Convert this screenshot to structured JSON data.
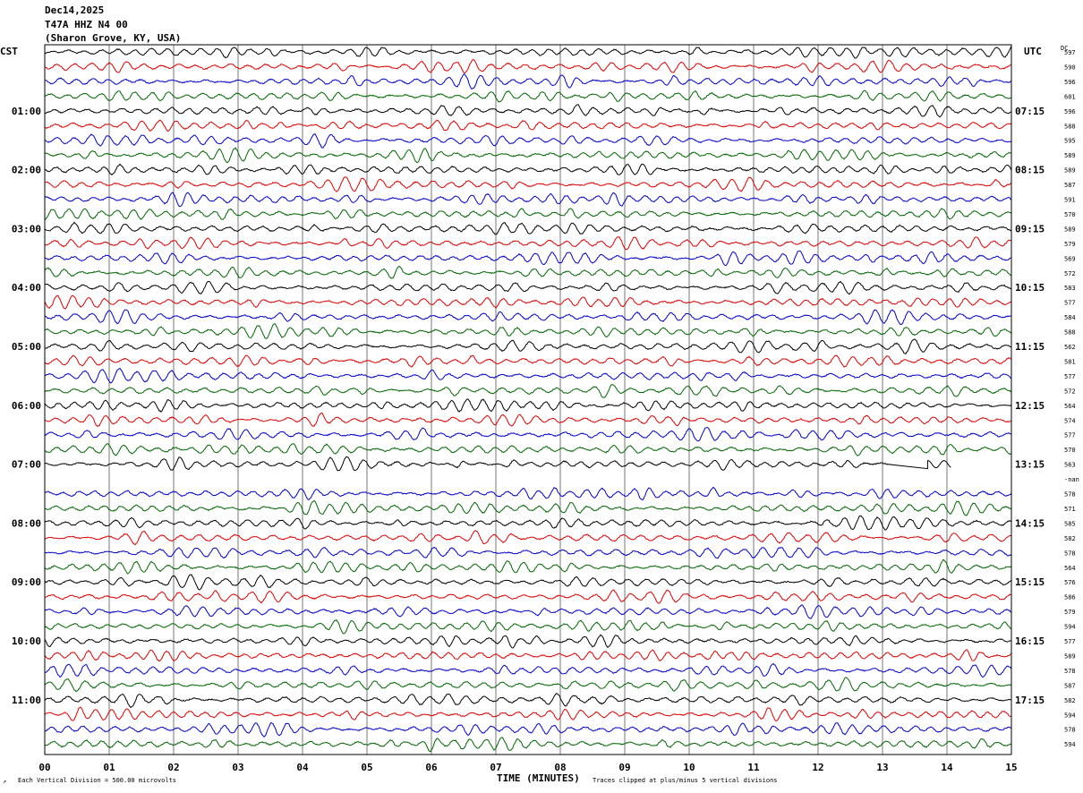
{
  "header": {
    "date": "Dec14,2025",
    "channel": "T47A HHZ N4 00",
    "location": "(Sharon Grove, KY, USA)"
  },
  "left_zone_label": "CST",
  "right_zone_label": "UTC",
  "dc_header": "DC",
  "footer": {
    "scale_note": "Each Vertical Division =   500.00 microvolts",
    "xlabel": "TIME (MINUTES)",
    "clip_note": "Traces clipped at plus/minus 5 vertical divisions"
  },
  "colors": {
    "cycle": [
      "#000000",
      "#dd0000",
      "#0000cc",
      "#006600"
    ],
    "grid": "#555555",
    "frame": "#000000"
  },
  "chart_data": {
    "type": "line",
    "title": "T47A HHZ N4 00",
    "xlabel": "TIME (MINUTES)",
    "xlim": [
      0,
      15
    ],
    "x_ticks": [
      "00",
      "01",
      "02",
      "03",
      "04",
      "05",
      "06",
      "07",
      "08",
      "09",
      "10",
      "11",
      "12",
      "13",
      "14",
      "15"
    ],
    "trace_count": 48,
    "left_labels": [
      {
        "row": 4,
        "text": "01:00"
      },
      {
        "row": 8,
        "text": "02:00"
      },
      {
        "row": 12,
        "text": "03:00"
      },
      {
        "row": 16,
        "text": "04:00"
      },
      {
        "row": 20,
        "text": "05:00"
      },
      {
        "row": 24,
        "text": "06:00"
      },
      {
        "row": 28,
        "text": "07:00"
      },
      {
        "row": 32,
        "text": "08:00"
      },
      {
        "row": 36,
        "text": "09:00"
      },
      {
        "row": 40,
        "text": "10:00"
      },
      {
        "row": 44,
        "text": "11:00"
      }
    ],
    "right_labels": [
      {
        "row": 4,
        "text": "07:15"
      },
      {
        "row": 8,
        "text": "08:15"
      },
      {
        "row": 12,
        "text": "09:15"
      },
      {
        "row": 16,
        "text": "10:15"
      },
      {
        "row": 20,
        "text": "11:15"
      },
      {
        "row": 24,
        "text": "12:15"
      },
      {
        "row": 28,
        "text": "13:15"
      },
      {
        "row": 32,
        "text": "14:15"
      },
      {
        "row": 36,
        "text": "15:15"
      },
      {
        "row": 40,
        "text": "16:15"
      },
      {
        "row": 44,
        "text": "17:15"
      }
    ],
    "dc_offsets": [
      "597",
      "590",
      "596",
      "601",
      "596",
      "588",
      "595",
      "589",
      "589",
      "587",
      "591",
      "570",
      "589",
      "579",
      "569",
      "572",
      "583",
      "577",
      "584",
      "588",
      "562",
      "581",
      "577",
      "572",
      "564",
      "574",
      "577",
      "570",
      "563",
      "-nan",
      "578",
      "571",
      "585",
      "582",
      "578",
      "564",
      "576",
      "586",
      "579",
      "594",
      "577",
      "589",
      "578",
      "587",
      "582",
      "594",
      "578",
      "594"
    ],
    "gaps": [
      {
        "row": 28,
        "from": 13.07,
        "to": 15,
        "note": "trace ends after short line segment"
      },
      {
        "row": 29,
        "from": 0,
        "to": 15,
        "note": "no data"
      }
    ],
    "amplitude_divisions_clip": 5
  }
}
